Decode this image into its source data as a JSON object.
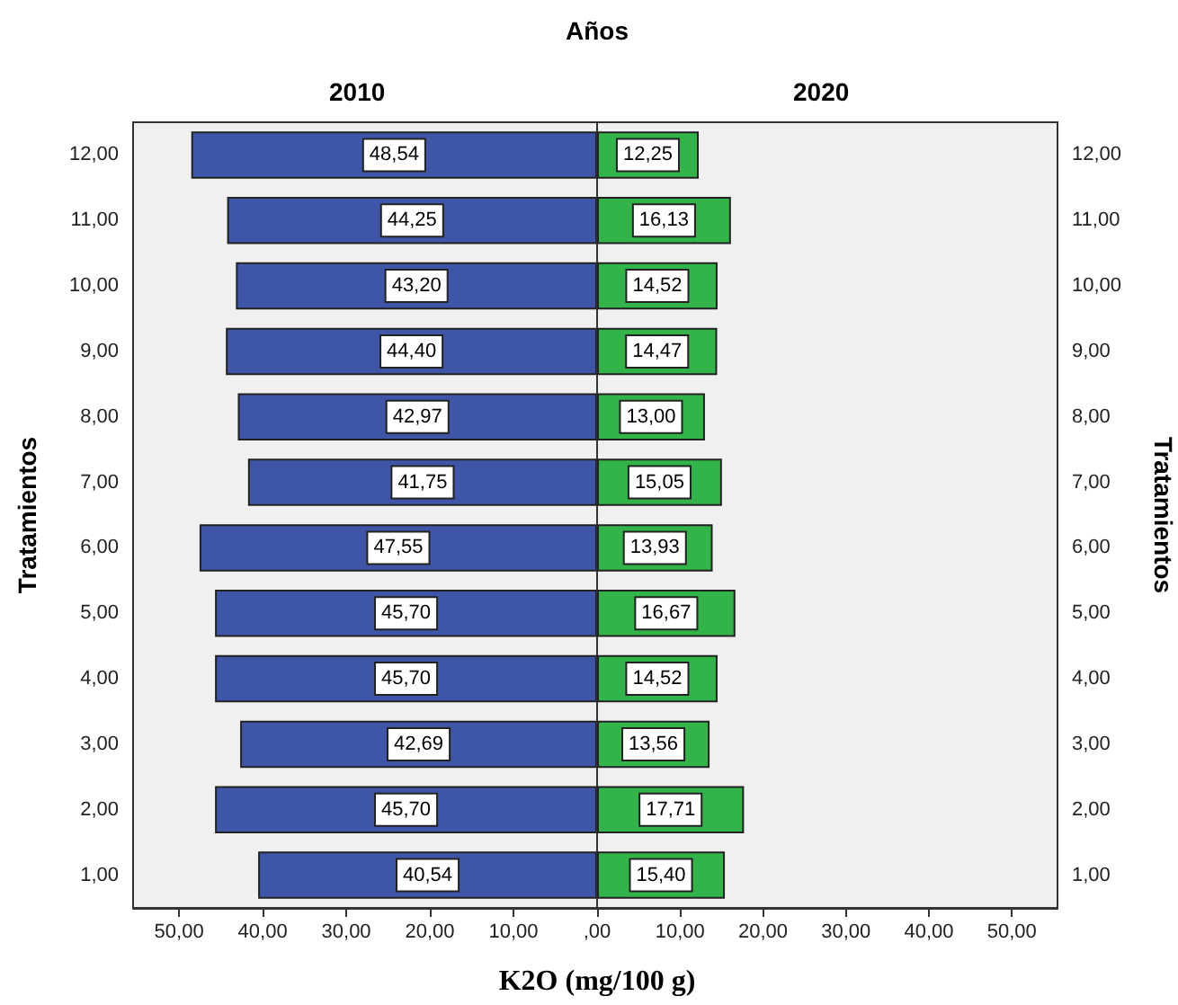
{
  "chart_data": [
    {
      "type": "bar",
      "orientation": "horizontal",
      "title": "2010",
      "ylabel": "Tratamientos",
      "xlabel": "K2O (mg/100 g)",
      "annotations": [
        "Años"
      ],
      "categories": [
        "12,00",
        "11,00",
        "10,00",
        "9,00",
        "8,00",
        "7,00",
        "6,00",
        "5,00",
        "4,00",
        "3,00",
        "2,00",
        "1,00"
      ],
      "values": [
        48.54,
        44.25,
        43.2,
        44.4,
        42.97,
        41.75,
        47.55,
        45.7,
        45.7,
        42.69,
        45.7,
        40.54
      ],
      "color": "#3f56a8",
      "value_labels": [
        "48,54",
        "44,25",
        "43,20",
        "44,40",
        "42,97",
        "41,75",
        "47,55",
        "45,70",
        "45,70",
        "42,69",
        "45,70",
        "40,54"
      ],
      "xlim": [
        55.5,
        0
      ],
      "xticks": [
        {
          "value": 50,
          "label": "50,00"
        },
        {
          "value": 40,
          "label": "40,00"
        },
        {
          "value": 30,
          "label": "30,00"
        },
        {
          "value": 20,
          "label": "20,00"
        },
        {
          "value": 10,
          "label": "10,00"
        },
        {
          "value": 0,
          "label": ",00"
        }
      ]
    },
    {
      "type": "bar",
      "orientation": "horizontal",
      "title": "2020",
      "ylabel": "Tratamientos",
      "categories": [
        "12,00",
        "11,00",
        "10,00",
        "9,00",
        "8,00",
        "7,00",
        "6,00",
        "5,00",
        "4,00",
        "3,00",
        "2,00",
        "1,00"
      ],
      "values": [
        12.25,
        16.13,
        14.52,
        14.47,
        13.0,
        15.05,
        13.93,
        16.67,
        14.52,
        13.56,
        17.71,
        15.4
      ],
      "color": "#33b44a",
      "value_labels": [
        "12,25",
        "16,13",
        "14,52",
        "14,47",
        "13,00",
        "15,05",
        "13,93",
        "16,67",
        "14,52",
        "13,56",
        "17,71",
        "15,40"
      ],
      "xlim": [
        0,
        55.5
      ],
      "xticks": [
        {
          "value": 0,
          "label": null
        },
        {
          "value": 10,
          "label": "10,00"
        },
        {
          "value": 20,
          "label": "20,00"
        },
        {
          "value": 30,
          "label": "30,00"
        },
        {
          "value": 40,
          "label": "40,00"
        },
        {
          "value": 50,
          "label": "50,00"
        }
      ]
    }
  ]
}
